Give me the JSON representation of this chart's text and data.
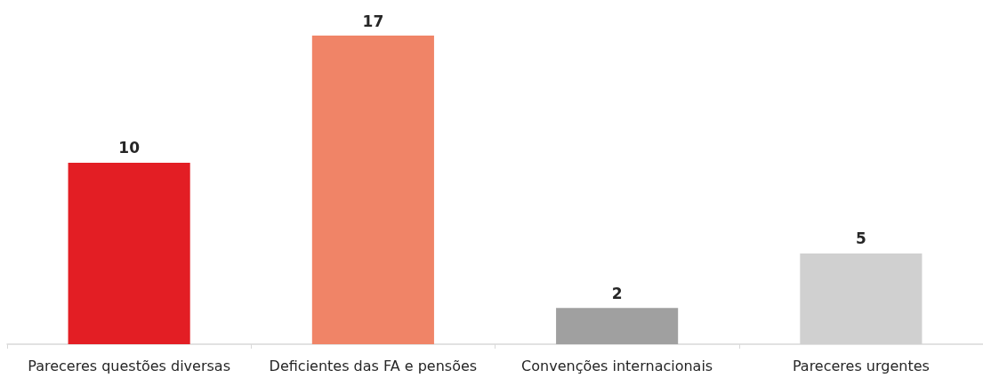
{
  "chart_data": {
    "type": "bar",
    "categories": [
      "Pareceres questões diversas",
      "Deficientes das FA e pensões",
      "Convenções internacionais",
      "Pareceres urgentes"
    ],
    "values": [
      10,
      17,
      2,
      5
    ],
    "colors": [
      "#e31e24",
      "#f08467",
      "#a0a0a0",
      "#d0d0d0"
    ],
    "data_labels": true
  }
}
